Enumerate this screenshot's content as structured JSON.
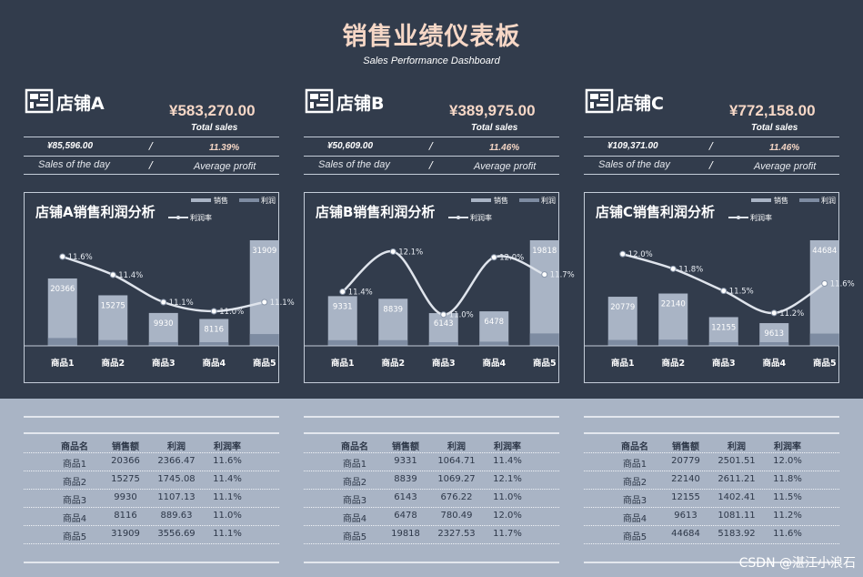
{
  "header": {
    "title": "销售业绩仪表板",
    "subtitle": "Sales Performance Dashboard"
  },
  "colors": {
    "background": "#323c4c",
    "accent": "#f6d7c6",
    "sales_bar": "#a9b4c5",
    "profit_bar": "#7e8ca2",
    "lower_panel": "#a9b4c5",
    "line": "#dfe4ec"
  },
  "stores": [
    {
      "icon": "store-icon",
      "name": "店铺A",
      "total": "¥583,270.00",
      "total_label": "Total sales",
      "day_value": "¥85,596.00",
      "day_label": "Sales of the day",
      "sep": "/",
      "avg_profit": "11.39%",
      "avg_label": "Average profit"
    },
    {
      "icon": "store-icon",
      "name": "店铺B",
      "total": "¥389,975.00",
      "total_label": "Total sales",
      "day_value": "¥50,609.00",
      "day_label": "Sales of the day",
      "sep": "/",
      "avg_profit": "11.46%",
      "avg_label": "Average profit"
    },
    {
      "icon": "store-icon",
      "name": "店铺C",
      "total": "¥772,158.00",
      "total_label": "Total sales",
      "day_value": "¥109,371.00",
      "day_label": "Sales of the day",
      "sep": "/",
      "avg_profit": "11.46%",
      "avg_label": "Average profit"
    }
  ],
  "chart_data": [
    {
      "type": "bar",
      "title": "店铺A销售利润分析",
      "categories": [
        "商品1",
        "商品2",
        "商品3",
        "商品4",
        "商品5"
      ],
      "series": [
        {
          "name": "销售",
          "values": [
            20366,
            15275,
            9930,
            8116,
            31909
          ]
        },
        {
          "name": "利润",
          "values": [
            2366.47,
            1745.08,
            1107.13,
            889.63,
            3556.69
          ]
        },
        {
          "name": "利润率",
          "values": [
            11.6,
            11.4,
            11.1,
            11.0,
            11.1
          ],
          "labels": [
            "11.6%",
            "11.4%",
            "11.1%",
            "11.0%",
            "11.1%"
          ],
          "style": "smooth-line"
        }
      ],
      "legend": "top-right"
    },
    {
      "type": "bar",
      "title": "店铺B销售利润分析",
      "categories": [
        "商品1",
        "商品2",
        "商品3",
        "商品4",
        "商品5"
      ],
      "series": [
        {
          "name": "销售",
          "values": [
            9331,
            8839,
            6143,
            6478,
            19818
          ]
        },
        {
          "name": "利润",
          "values": [
            1064.71,
            1069.27,
            676.22,
            780.49,
            2327.53
          ]
        },
        {
          "name": "利润率",
          "values": [
            11.4,
            12.1,
            11.0,
            12.0,
            11.7
          ],
          "labels": [
            "11.4%",
            "12.1%",
            "11.0%",
            "12.0%",
            "11.7%"
          ],
          "style": "smooth-line"
        }
      ],
      "legend": "top-right"
    },
    {
      "type": "bar",
      "title": "店铺C销售利润分析",
      "categories": [
        "商品1",
        "商品2",
        "商品3",
        "商品4",
        "商品5"
      ],
      "series": [
        {
          "name": "销售",
          "values": [
            20779,
            22140,
            12155,
            9613,
            44684
          ]
        },
        {
          "name": "利润",
          "values": [
            2501.51,
            2611.21,
            1402.41,
            1081.11,
            5183.92
          ]
        },
        {
          "name": "利润率",
          "values": [
            12.0,
            11.8,
            11.5,
            11.2,
            11.6
          ],
          "labels": [
            "12.0%",
            "11.8%",
            "11.5%",
            "11.2%",
            "11.6%"
          ],
          "style": "smooth-line"
        }
      ],
      "legend": "top-right"
    }
  ],
  "tables": [
    {
      "headers": [
        "商品名",
        "销售额",
        "利润",
        "利润率"
      ],
      "rows": [
        [
          "商品1",
          "20366",
          "2366.47",
          "11.6%"
        ],
        [
          "商品2",
          "15275",
          "1745.08",
          "11.4%"
        ],
        [
          "商品3",
          "9930",
          "1107.13",
          "11.1%"
        ],
        [
          "商品4",
          "8116",
          "889.63",
          "11.0%"
        ],
        [
          "商品5",
          "31909",
          "3556.69",
          "11.1%"
        ]
      ]
    },
    {
      "headers": [
        "商品名",
        "销售额",
        "利润",
        "利润率"
      ],
      "rows": [
        [
          "商品1",
          "9331",
          "1064.71",
          "11.4%"
        ],
        [
          "商品2",
          "8839",
          "1069.27",
          "12.1%"
        ],
        [
          "商品3",
          "6143",
          "676.22",
          "11.0%"
        ],
        [
          "商品4",
          "6478",
          "780.49",
          "12.0%"
        ],
        [
          "商品5",
          "19818",
          "2327.53",
          "11.7%"
        ]
      ]
    },
    {
      "headers": [
        "商品名",
        "销售额",
        "利润",
        "利润率"
      ],
      "rows": [
        [
          "商品1",
          "20779",
          "2501.51",
          "12.0%"
        ],
        [
          "商品2",
          "22140",
          "2611.21",
          "11.8%"
        ],
        [
          "商品3",
          "12155",
          "1402.41",
          "11.5%"
        ],
        [
          "商品4",
          "9613",
          "1081.11",
          "11.2%"
        ],
        [
          "商品5",
          "44684",
          "5183.92",
          "11.6%"
        ]
      ]
    }
  ],
  "watermark": "CSDN @湛江小浪石"
}
